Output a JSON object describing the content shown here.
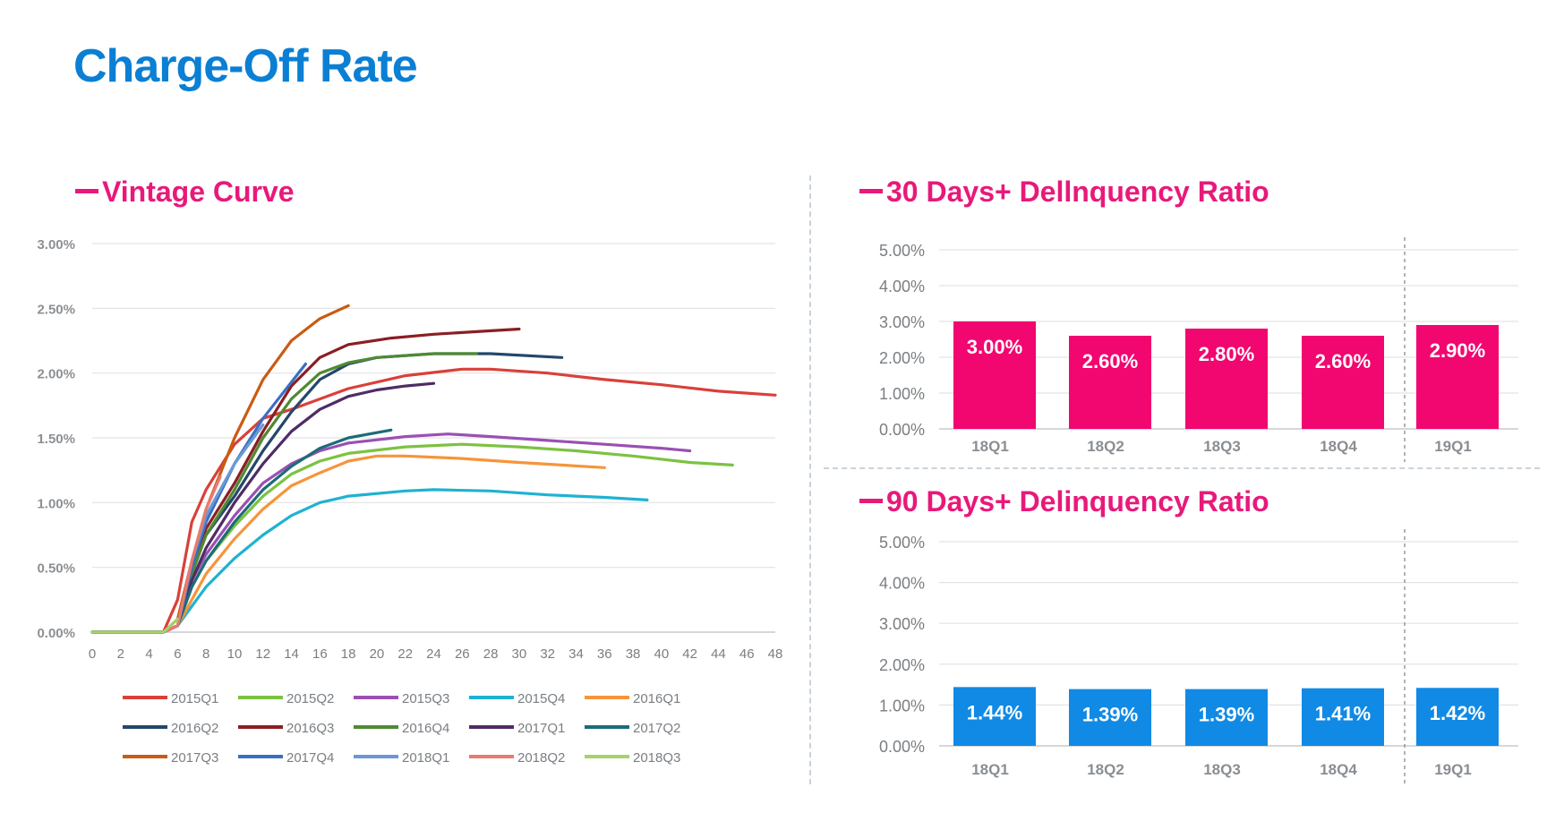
{
  "title": "Charge-Off Rate",
  "chart_data": [
    {
      "type": "line",
      "title": "Vintage Curve",
      "xlabel": "",
      "ylabel": "",
      "xlim": [
        0,
        48
      ],
      "ylim": [
        0,
        3
      ],
      "x_ticks": [
        "0",
        "2",
        "4",
        "6",
        "8",
        "10",
        "12",
        "14",
        "16",
        "18",
        "20",
        "22",
        "24",
        "26",
        "28",
        "30",
        "32",
        "34",
        "36",
        "38",
        "40",
        "42",
        "44",
        "46",
        "48"
      ],
      "y_ticks": [
        "0.00%",
        "0.50%",
        "1.00%",
        "1.50%",
        "2.00%",
        "2.50%",
        "3.00%"
      ],
      "grid": "horizontal",
      "legend_position": "bottom",
      "series": [
        {
          "name": "2015Q1",
          "color": "#d9403a",
          "points": [
            [
              0,
              0
            ],
            [
              5,
              0
            ],
            [
              6,
              0.25
            ],
            [
              7,
              0.85
            ],
            [
              8,
              1.1
            ],
            [
              10,
              1.45
            ],
            [
              12,
              1.65
            ],
            [
              14,
              1.72
            ],
            [
              18,
              1.88
            ],
            [
              22,
              1.98
            ],
            [
              26,
              2.03
            ],
            [
              28,
              2.03
            ],
            [
              32,
              2.0
            ],
            [
              36,
              1.95
            ],
            [
              40,
              1.91
            ],
            [
              44,
              1.86
            ],
            [
              48,
              1.83
            ]
          ]
        },
        {
          "name": "2015Q2",
          "color": "#7cc242",
          "points": [
            [
              0,
              0
            ],
            [
              5,
              0
            ],
            [
              6,
              0.05
            ],
            [
              7,
              0.35
            ],
            [
              8,
              0.55
            ],
            [
              10,
              0.82
            ],
            [
              12,
              1.05
            ],
            [
              14,
              1.22
            ],
            [
              16,
              1.32
            ],
            [
              18,
              1.38
            ],
            [
              22,
              1.43
            ],
            [
              26,
              1.45
            ],
            [
              30,
              1.43
            ],
            [
              34,
              1.4
            ],
            [
              38,
              1.36
            ],
            [
              42,
              1.31
            ],
            [
              45,
              1.29
            ]
          ]
        },
        {
          "name": "2015Q3",
          "color": "#9a50b3",
          "points": [
            [
              0,
              0
            ],
            [
              5,
              0
            ],
            [
              6,
              0.05
            ],
            [
              7,
              0.4
            ],
            [
              8,
              0.6
            ],
            [
              10,
              0.9
            ],
            [
              12,
              1.15
            ],
            [
              14,
              1.3
            ],
            [
              16,
              1.4
            ],
            [
              18,
              1.46
            ],
            [
              22,
              1.51
            ],
            [
              25,
              1.53
            ],
            [
              28,
              1.51
            ],
            [
              32,
              1.48
            ],
            [
              36,
              1.45
            ],
            [
              40,
              1.42
            ],
            [
              42,
              1.4
            ]
          ]
        },
        {
          "name": "2015Q4",
          "color": "#1fb2d1",
          "points": [
            [
              0,
              0
            ],
            [
              5,
              0
            ],
            [
              6,
              0.05
            ],
            [
              7,
              0.2
            ],
            [
              8,
              0.35
            ],
            [
              10,
              0.57
            ],
            [
              12,
              0.75
            ],
            [
              14,
              0.9
            ],
            [
              16,
              1.0
            ],
            [
              18,
              1.05
            ],
            [
              22,
              1.09
            ],
            [
              24,
              1.1
            ],
            [
              28,
              1.09
            ],
            [
              32,
              1.06
            ],
            [
              36,
              1.04
            ],
            [
              39,
              1.02
            ]
          ]
        },
        {
          "name": "2016Q1",
          "color": "#f5953a",
          "points": [
            [
              0,
              0
            ],
            [
              5,
              0
            ],
            [
              6,
              0.05
            ],
            [
              7,
              0.25
            ],
            [
              8,
              0.45
            ],
            [
              10,
              0.72
            ],
            [
              12,
              0.95
            ],
            [
              14,
              1.13
            ],
            [
              16,
              1.23
            ],
            [
              18,
              1.32
            ],
            [
              20,
              1.36
            ],
            [
              22,
              1.36
            ],
            [
              26,
              1.34
            ],
            [
              30,
              1.31
            ],
            [
              33,
              1.29
            ],
            [
              36,
              1.27
            ]
          ]
        },
        {
          "name": "2016Q2",
          "color": "#24476b",
          "points": [
            [
              0,
              0
            ],
            [
              5,
              0
            ],
            [
              6,
              0.05
            ],
            [
              7,
              0.45
            ],
            [
              8,
              0.75
            ],
            [
              10,
              1.05
            ],
            [
              12,
              1.4
            ],
            [
              14,
              1.7
            ],
            [
              16,
              1.95
            ],
            [
              18,
              2.07
            ],
            [
              20,
              2.12
            ],
            [
              24,
              2.15
            ],
            [
              28,
              2.15
            ],
            [
              33,
              2.12
            ]
          ]
        },
        {
          "name": "2016Q3",
          "color": "#8a1f24",
          "points": [
            [
              0,
              0
            ],
            [
              5,
              0
            ],
            [
              6,
              0.05
            ],
            [
              7,
              0.5
            ],
            [
              8,
              0.8
            ],
            [
              10,
              1.15
            ],
            [
              12,
              1.55
            ],
            [
              14,
              1.9
            ],
            [
              16,
              2.12
            ],
            [
              18,
              2.22
            ],
            [
              21,
              2.27
            ],
            [
              24,
              2.3
            ],
            [
              27,
              2.32
            ],
            [
              30,
              2.34
            ]
          ]
        },
        {
          "name": "2016Q4",
          "color": "#4f8a32",
          "points": [
            [
              0,
              0
            ],
            [
              5,
              0
            ],
            [
              6,
              0.05
            ],
            [
              7,
              0.45
            ],
            [
              8,
              0.75
            ],
            [
              10,
              1.1
            ],
            [
              12,
              1.5
            ],
            [
              14,
              1.8
            ],
            [
              16,
              2.0
            ],
            [
              18,
              2.08
            ],
            [
              20,
              2.12
            ],
            [
              24,
              2.15
            ],
            [
              27,
              2.15
            ]
          ]
        },
        {
          "name": "2017Q1",
          "color": "#4e2c66",
          "points": [
            [
              0,
              0
            ],
            [
              5,
              0
            ],
            [
              6,
              0.05
            ],
            [
              7,
              0.4
            ],
            [
              8,
              0.65
            ],
            [
              10,
              1.0
            ],
            [
              12,
              1.3
            ],
            [
              14,
              1.55
            ],
            [
              16,
              1.72
            ],
            [
              18,
              1.82
            ],
            [
              20,
              1.87
            ],
            [
              22,
              1.9
            ],
            [
              24,
              1.92
            ]
          ]
        },
        {
          "name": "2017Q2",
          "color": "#1d6b78",
          "points": [
            [
              0,
              0
            ],
            [
              5,
              0
            ],
            [
              6,
              0.05
            ],
            [
              7,
              0.35
            ],
            [
              8,
              0.55
            ],
            [
              10,
              0.85
            ],
            [
              12,
              1.1
            ],
            [
              14,
              1.28
            ],
            [
              16,
              1.42
            ],
            [
              18,
              1.5
            ],
            [
              20,
              1.54
            ],
            [
              21,
              1.56
            ]
          ]
        },
        {
          "name": "2017Q3",
          "color": "#c95b12",
          "points": [
            [
              0,
              0
            ],
            [
              5,
              0
            ],
            [
              6,
              0.1
            ],
            [
              7,
              0.55
            ],
            [
              8,
              0.95
            ],
            [
              10,
              1.5
            ],
            [
              12,
              1.95
            ],
            [
              14,
              2.25
            ],
            [
              16,
              2.42
            ],
            [
              18,
              2.52
            ]
          ]
        },
        {
          "name": "2017Q4",
          "color": "#3a6fc4",
          "points": [
            [
              0,
              0
            ],
            [
              5,
              0
            ],
            [
              6,
              0.05
            ],
            [
              7,
              0.5
            ],
            [
              8,
              0.85
            ],
            [
              10,
              1.3
            ],
            [
              12,
              1.65
            ],
            [
              14,
              1.93
            ],
            [
              15,
              2.07
            ]
          ]
        },
        {
          "name": "2018Q1",
          "color": "#6b98d4",
          "points": [
            [
              0,
              0
            ],
            [
              5,
              0
            ],
            [
              6,
              0.05
            ],
            [
              7,
              0.55
            ],
            [
              8,
              0.9
            ],
            [
              10,
              1.3
            ],
            [
              12,
              1.6
            ]
          ]
        },
        {
          "name": "2018Q2",
          "color": "#e97a6f",
          "points": [
            [
              0,
              0
            ],
            [
              5,
              0
            ],
            [
              6,
              0.05
            ],
            [
              7,
              0.55
            ],
            [
              8,
              0.95
            ],
            [
              9,
              1.2
            ]
          ]
        },
        {
          "name": "2018Q3",
          "color": "#a3d36a",
          "points": [
            [
              0,
              0
            ],
            [
              5,
              0
            ],
            [
              6,
              0.1
            ]
          ]
        }
      ]
    },
    {
      "type": "bar",
      "title": "30 Days+ Dellnquency Ratio",
      "categories": [
        "18Q1",
        "18Q2",
        "18Q3",
        "18Q4",
        "19Q1"
      ],
      "values": [
        3.0,
        2.6,
        2.8,
        2.6,
        2.9
      ],
      "data_labels": [
        "3.00%",
        "2.60%",
        "2.80%",
        "2.60%",
        "2.90%"
      ],
      "ylim": [
        0,
        5
      ],
      "y_ticks": [
        "0.00%",
        "1.00%",
        "2.00%",
        "3.00%",
        "4.00%",
        "5.00%"
      ],
      "color": "#f2066f",
      "separator_before": "19Q1"
    },
    {
      "type": "bar",
      "title": "90 Days+ Delinquency Ratio",
      "categories": [
        "18Q1",
        "18Q2",
        "18Q3",
        "18Q4",
        "19Q1"
      ],
      "values": [
        1.44,
        1.39,
        1.39,
        1.41,
        1.42
      ],
      "data_labels": [
        "1.44%",
        "1.39%",
        "1.39%",
        "1.41%",
        "1.42%"
      ],
      "ylim": [
        0,
        5
      ],
      "y_ticks": [
        "0.00%",
        "1.00%",
        "2.00%",
        "3.00%",
        "4.00%",
        "5.00%"
      ],
      "color": "#118ae5",
      "separator_before": "19Q1"
    }
  ]
}
